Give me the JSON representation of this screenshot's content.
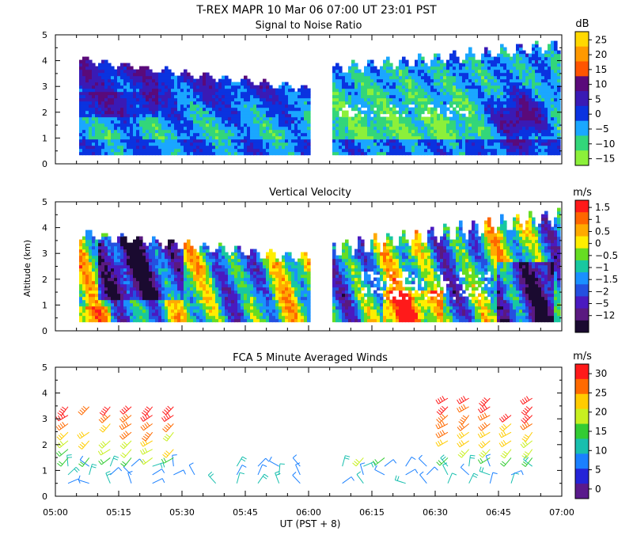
{
  "header": {
    "title": "T-REX   MAPR 10 Mar 06   07:00 UT   23:01   PST"
  },
  "chart_data": [
    {
      "type": "heatmap",
      "title": "Signal to Noise Ratio",
      "units": "dB",
      "ylim": [
        0,
        5
      ],
      "yticks": [
        "0",
        "1",
        "2",
        "3",
        "4",
        "5"
      ],
      "colorbar_labels": [
        "25",
        "20",
        "15",
        "10",
        "5",
        "0",
        "−5",
        "−10",
        "−15"
      ],
      "colors": [
        "#ffd800",
        "#ff9900",
        "#ff5500",
        "#5a0a7a",
        "#3a1ab5",
        "#0a33e0",
        "#1aa7ff",
        "#33d67a",
        "#8cf03a"
      ]
    },
    {
      "type": "heatmap",
      "title": "Vertical Velocity",
      "units": "m/s",
      "ylabel": "Altitude (km)",
      "ylim": [
        0,
        5
      ],
      "yticks": [
        "0",
        "1",
        "2",
        "3",
        "4",
        "5"
      ],
      "colorbar_labels": [
        "1.5",
        "1",
        "0.5",
        "0",
        "−0.5",
        "−1",
        "−1.5",
        "−2",
        "−5",
        "−12"
      ],
      "colors": [
        "#ff1a1a",
        "#ff6600",
        "#ffaa00",
        "#ffee00",
        "#66dd22",
        "#18c8a0",
        "#1a90ff",
        "#2450e0",
        "#4a1ac0",
        "#5a1a80",
        "#1a0a30"
      ]
    },
    {
      "type": "scatter",
      "title": "FCA 5 Minute Averaged Winds",
      "units": "m/s",
      "xlabel": "UT  (PST + 8)",
      "ylim": [
        0,
        5
      ],
      "yticks": [
        "0",
        "1",
        "2",
        "3",
        "4",
        "5"
      ],
      "xticks": [
        "05:00",
        "05:15",
        "05:30",
        "05:45",
        "06:00",
        "06:15",
        "06:30",
        "06:45",
        "07:00"
      ],
      "colorbar_labels": [
        "30",
        "25",
        "20",
        "15",
        "10",
        "5",
        "0"
      ],
      "colors": [
        "#ff1a1a",
        "#ff6a00",
        "#ffcc00",
        "#c8f020",
        "#33cc33",
        "#18bfae",
        "#1a80ff",
        "#2424d8",
        "#5a1a8c"
      ]
    }
  ]
}
